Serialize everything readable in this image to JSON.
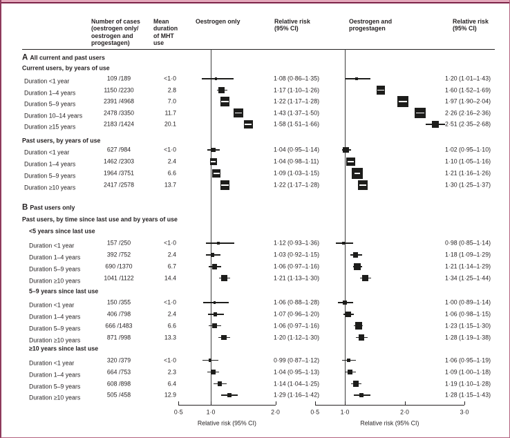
{
  "columns": {
    "cases": "Number of cases\n(oestrogen only/\noestrogen and\nprogestagen)",
    "duration": "Mean\nduration\nof MHT\nuse",
    "plot1": "Oestrogen only",
    "rr1": "Relative risk\n(95% CI)",
    "plot2": "Oestrogen and\nprogestagen",
    "rr2": "Relative risk\n(95% CI)"
  },
  "colors": {
    "accent_pink": "#e4a9bc",
    "accent_maroon": "#7d2449",
    "border_rose": "#b2617e",
    "ink": "#231f20"
  },
  "chart_data": {
    "type": "forest",
    "plots": [
      {
        "id": "oestrogen_only",
        "axis": {
          "scale": "linear",
          "min": 0.5,
          "max": 2.0,
          "ticks": [
            0.5,
            1.0,
            2.0
          ],
          "tick_labels": [
            "0·5",
            "1·0",
            "2·0"
          ],
          "label": "Relative risk (95% CI)",
          "ref_line": 1.0
        }
      },
      {
        "id": "oestrogen_progestagen",
        "axis": {
          "scale": "linear",
          "min": 0.5,
          "max": 3.0,
          "ticks": [
            0.5,
            1.0,
            2.0,
            3.0
          ],
          "tick_labels": [
            "0·5",
            "1·0",
            "2·0",
            "3·0"
          ],
          "label": "Relative risk (95% CI)",
          "ref_line": 1.0
        }
      }
    ],
    "sections": [
      {
        "letter": "A",
        "title": "All current and past users",
        "subtitle": null,
        "groups": [
          {
            "title": "Current users, by years of use",
            "indent": false,
            "rows": [
              {
                "label": "Duration <1 year",
                "cases_text": "109 /189",
                "cases": [
                  109,
                  189
                ],
                "duration": "<1·0",
                "e": {
                  "rr": 1.08,
                  "lo": 0.86,
                  "hi": 1.35,
                  "text": "1·08 (0·86–1·35)"
                },
                "ep": {
                  "rr": 1.2,
                  "lo": 1.01,
                  "hi": 1.43,
                  "text": "1·20 (1·01–1·43)"
                }
              },
              {
                "label": "Duration 1–4 years",
                "cases_text": "1150 /2230",
                "cases": [
                  1150,
                  2230
                ],
                "duration": "2.8",
                "e": {
                  "rr": 1.17,
                  "lo": 1.1,
                  "hi": 1.26,
                  "text": "1·17 (1·10–1·26)"
                },
                "ep": {
                  "rr": 1.6,
                  "lo": 1.52,
                  "hi": 1.69,
                  "text": "1·60 (1·52–1·69)"
                }
              },
              {
                "label": "Duration 5–9 years",
                "cases_text": "2391 /4968",
                "cases": [
                  2391,
                  4968
                ],
                "duration": "7.0",
                "e": {
                  "rr": 1.22,
                  "lo": 1.17,
                  "hi": 1.28,
                  "text": "1·22 (1·17–1·28)"
                },
                "ep": {
                  "rr": 1.97,
                  "lo": 1.9,
                  "hi": 2.04,
                  "text": "1·97 (1·90–2·04)"
                }
              },
              {
                "label": "Duration 10–14 years",
                "cases_text": "2478 /3350",
                "cases": [
                  2478,
                  3350
                ],
                "duration": "11.7",
                "e": {
                  "rr": 1.43,
                  "lo": 1.37,
                  "hi": 1.5,
                  "text": "1·43 (1·37–1·50)"
                },
                "ep": {
                  "rr": 2.26,
                  "lo": 2.16,
                  "hi": 2.36,
                  "text": "2·26 (2·16–2·36)"
                }
              },
              {
                "label": "Duration ≥15 years",
                "cases_text": "2183 /1424",
                "cases": [
                  2183,
                  1424
                ],
                "duration": "20.1",
                "e": {
                  "rr": 1.58,
                  "lo": 1.51,
                  "hi": 1.66,
                  "text": "1·58 (1·51–1·66)"
                },
                "ep": {
                  "rr": 2.51,
                  "lo": 2.35,
                  "hi": 2.68,
                  "text": "2·51 (2·35–2·68)"
                }
              }
            ]
          },
          {
            "title": "Past users, by years of use",
            "indent": false,
            "rows": [
              {
                "label": "Duration <1 year",
                "cases_text": "627 /984",
                "cases": [
                  627,
                  984
                ],
                "duration": "<1·0",
                "e": {
                  "rr": 1.04,
                  "lo": 0.95,
                  "hi": 1.14,
                  "text": "1·04 (0·95–1·14)"
                },
                "ep": {
                  "rr": 1.02,
                  "lo": 0.95,
                  "hi": 1.1,
                  "text": "1·02 (0·95–1·10)"
                }
              },
              {
                "label": "Duration 1–4 years",
                "cases_text": "1462 /2303",
                "cases": [
                  1462,
                  2303
                ],
                "duration": "2.4",
                "e": {
                  "rr": 1.04,
                  "lo": 0.98,
                  "hi": 1.11,
                  "text": "1·04 (0·98–1·11)"
                },
                "ep": {
                  "rr": 1.1,
                  "lo": 1.05,
                  "hi": 1.16,
                  "text": "1·10 (1·05–1·16)"
                }
              },
              {
                "label": "Duration 5–9 years",
                "cases_text": "1964 /3751",
                "cases": [
                  1964,
                  3751
                ],
                "duration": "6.6",
                "e": {
                  "rr": 1.09,
                  "lo": 1.03,
                  "hi": 1.15,
                  "text": "1·09 (1·03–1·15)"
                },
                "ep": {
                  "rr": 1.21,
                  "lo": 1.16,
                  "hi": 1.26,
                  "text": "1·21 (1·16–1·26)"
                }
              },
              {
                "label": "Duration ≥10 years",
                "cases_text": "2417 /2578",
                "cases": [
                  2417,
                  2578
                ],
                "duration": "13.7",
                "e": {
                  "rr": 1.22,
                  "lo": 1.17,
                  "hi": 1.28,
                  "text": "1·22 (1·17–1·28)"
                },
                "ep": {
                  "rr": 1.3,
                  "lo": 1.25,
                  "hi": 1.37,
                  "text": "1·30 (1·25–1·37)"
                }
              }
            ]
          }
        ]
      },
      {
        "letter": "B",
        "title": "Past users only",
        "subtitle": "Past users, by time since last use and by years of use",
        "groups": [
          {
            "title": "<5 years since last use",
            "indent": true,
            "rows": [
              {
                "label": "Duration <1 year",
                "cases_text": "157 /250",
                "cases": [
                  157,
                  250
                ],
                "duration": "<1·0",
                "e": {
                  "rr": 1.12,
                  "lo": 0.93,
                  "hi": 1.36,
                  "text": "1·12 (0·93–1·36)"
                },
                "ep": {
                  "rr": 0.98,
                  "lo": 0.85,
                  "hi": 1.14,
                  "text": "0·98 (0·85–1·14)"
                }
              },
              {
                "label": "Duration 1–4 years",
                "cases_text": "392 /752",
                "cases": [
                  392,
                  752
                ],
                "duration": "2.4",
                "e": {
                  "rr": 1.03,
                  "lo": 0.92,
                  "hi": 1.15,
                  "text": "1·03 (0·92–1·15)"
                },
                "ep": {
                  "rr": 1.18,
                  "lo": 1.09,
                  "hi": 1.29,
                  "text": "1·18 (1·09–1·29)"
                }
              },
              {
                "label": "Duration 5–9 years",
                "cases_text": "690 /1370",
                "cases": [
                  690,
                  1370
                ],
                "duration": "6.7",
                "e": {
                  "rr": 1.06,
                  "lo": 0.97,
                  "hi": 1.16,
                  "text": "1·06 (0·97–1·16)"
                },
                "ep": {
                  "rr": 1.21,
                  "lo": 1.14,
                  "hi": 1.29,
                  "text": "1·21 (1·14–1·29)"
                }
              },
              {
                "label": "Duration ≥10 years",
                "cases_text": "1041 /1122",
                "cases": [
                  1041,
                  1122
                ],
                "duration": "14.4",
                "e": {
                  "rr": 1.21,
                  "lo": 1.13,
                  "hi": 1.3,
                  "text": "1·21 (1·13–1·30)"
                },
                "ep": {
                  "rr": 1.34,
                  "lo": 1.25,
                  "hi": 1.44,
                  "text": "1·34 (1·25–1·44)"
                }
              }
            ]
          },
          {
            "title": "5–9 years since last use",
            "indent": true,
            "rows": [
              {
                "label": "Duration <1 year",
                "cases_text": "150 /355",
                "cases": [
                  150,
                  355
                ],
                "duration": "<1·0",
                "e": {
                  "rr": 1.06,
                  "lo": 0.88,
                  "hi": 1.28,
                  "text": "1·06 (0·88–1·28)"
                },
                "ep": {
                  "rr": 1.0,
                  "lo": 0.89,
                  "hi": 1.14,
                  "text": "1·00 (0·89–1·14)"
                }
              },
              {
                "label": "Duration 1–4 years",
                "cases_text": "406 /798",
                "cases": [
                  406,
                  798
                ],
                "duration": "2.4",
                "e": {
                  "rr": 1.07,
                  "lo": 0.96,
                  "hi": 1.2,
                  "text": "1·07 (0·96–1·20)"
                },
                "ep": {
                  "rr": 1.06,
                  "lo": 0.98,
                  "hi": 1.15,
                  "text": "1·06 (0·98–1·15)"
                }
              },
              {
                "label": "Duration 5–9 years",
                "cases_text": "666 /1483",
                "cases": [
                  666,
                  1483
                ],
                "duration": "6.6",
                "e": {
                  "rr": 1.06,
                  "lo": 0.97,
                  "hi": 1.16,
                  "text": "1·06 (0·97–1·16)"
                },
                "ep": {
                  "rr": 1.23,
                  "lo": 1.15,
                  "hi": 1.3,
                  "text": "1·23 (1·15–1·30)"
                }
              },
              {
                "label": "Duration ≥10 years",
                "cases_text": "871 /998",
                "cases": [
                  871,
                  998
                ],
                "duration": "13.3",
                "e": {
                  "rr": 1.2,
                  "lo": 1.12,
                  "hi": 1.3,
                  "text": "1·20 (1·12–1·30)"
                },
                "ep": {
                  "rr": 1.28,
                  "lo": 1.19,
                  "hi": 1.38,
                  "text": "1·28 (1·19–1·38)"
                }
              }
            ]
          },
          {
            "title": "≥10 years since last use",
            "indent": true,
            "rows": [
              {
                "label": "Duration <1 year",
                "cases_text": "320 /379",
                "cases": [
                  320,
                  379
                ],
                "duration": "<1·0",
                "e": {
                  "rr": 0.99,
                  "lo": 0.87,
                  "hi": 1.12,
                  "text": "0·99 (0·87–1·12)"
                },
                "ep": {
                  "rr": 1.06,
                  "lo": 0.95,
                  "hi": 1.19,
                  "text": "1·06 (0·95–1·19)"
                }
              },
              {
                "label": "Duration 1–4 years",
                "cases_text": "664 /753",
                "cases": [
                  664,
                  753
                ],
                "duration": "2.3",
                "e": {
                  "rr": 1.04,
                  "lo": 0.95,
                  "hi": 1.13,
                  "text": "1·04 (0·95–1·13)"
                },
                "ep": {
                  "rr": 1.09,
                  "lo": 1.0,
                  "hi": 1.18,
                  "text": "1·09 (1·00–1·18)"
                }
              },
              {
                "label": "Duration 5–9 years",
                "cases_text": "608 /898",
                "cases": [
                  608,
                  898
                ],
                "duration": "6.4",
                "e": {
                  "rr": 1.14,
                  "lo": 1.04,
                  "hi": 1.25,
                  "text": "1·14 (1·04–1·25)"
                },
                "ep": {
                  "rr": 1.19,
                  "lo": 1.1,
                  "hi": 1.28,
                  "text": "1·19 (1·10–1·28)"
                }
              },
              {
                "label": "Duration ≥10 years",
                "cases_text": "505 /458",
                "cases": [
                  505,
                  458
                ],
                "duration": "12.9",
                "e": {
                  "rr": 1.29,
                  "lo": 1.16,
                  "hi": 1.42,
                  "text": "1·29 (1·16–1·42)"
                },
                "ep": {
                  "rr": 1.28,
                  "lo": 1.15,
                  "hi": 1.43,
                  "text": "1·28 (1·15–1·43)"
                }
              }
            ]
          }
        ]
      }
    ]
  }
}
